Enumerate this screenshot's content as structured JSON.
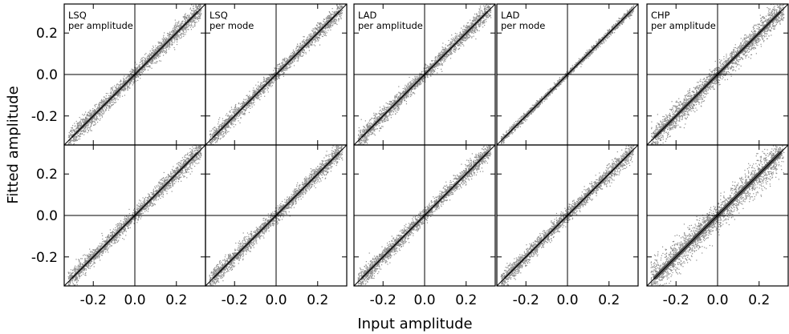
{
  "chart_data": {
    "type": "scatter",
    "xlabel": "Input amplitude",
    "ylabel": "Fitted amplitude",
    "xlim": [
      -0.34,
      0.34
    ],
    "ylim": [
      -0.34,
      0.34
    ],
    "xticks": [
      "-0.2",
      "0.0",
      "0.2"
    ],
    "yticks": [
      "0.2",
      "0.0",
      "-0.2"
    ],
    "tick_values": [
      -0.2,
      0.0,
      0.2
    ],
    "grid": false,
    "reference_line": "y = x",
    "columns": [
      {
        "title_line1": "LSQ",
        "title_line2": "per amplitude"
      },
      {
        "title_line1": "LSQ",
        "title_line2": "per mode"
      },
      {
        "title_line1": "LAD",
        "title_line2": "per amplitude"
      },
      {
        "title_line1": "LAD",
        "title_line2": "per mode"
      },
      {
        "title_line1": "CHP",
        "title_line2": "per amplitude"
      }
    ],
    "panels": [
      {
        "row": 0,
        "col": 0,
        "scatter_sd": 0.018
      },
      {
        "row": 0,
        "col": 1,
        "scatter_sd": 0.016
      },
      {
        "row": 0,
        "col": 2,
        "scatter_sd": 0.017
      },
      {
        "row": 0,
        "col": 3,
        "scatter_sd": 0.007
      },
      {
        "row": 0,
        "col": 4,
        "scatter_sd": 0.024
      },
      {
        "row": 1,
        "col": 0,
        "scatter_sd": 0.017
      },
      {
        "row": 1,
        "col": 1,
        "scatter_sd": 0.017
      },
      {
        "row": 1,
        "col": 2,
        "scatter_sd": 0.017
      },
      {
        "row": 1,
        "col": 3,
        "scatter_sd": 0.016
      },
      {
        "row": 1,
        "col": 4,
        "scatter_sd": 0.032
      }
    ],
    "point_color": "#8c8c8c"
  }
}
